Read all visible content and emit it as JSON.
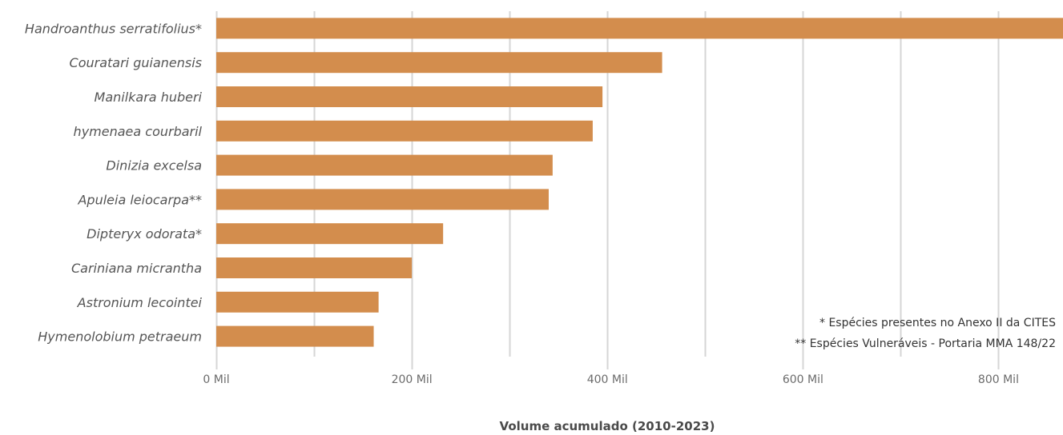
{
  "colors": {
    "bar": "#D38D4D",
    "grid": "#D6D6D6"
  },
  "chart_data": {
    "type": "bar",
    "orientation": "horizontal",
    "categories": [
      "Handroanthus serratifolius*",
      "Couratari guianensis",
      "Manilkara huberi",
      "hymenaea courbaril",
      "Dinizia excelsa",
      "Apuleia leiocarpa**",
      "Dipteryx odorata*",
      "Cariniana micrantha",
      "Astronium lecointei",
      "Hymenolobium petraeum"
    ],
    "values": [
      866000,
      456000,
      395000,
      385000,
      344000,
      340000,
      232000,
      200000,
      166000,
      161000
    ],
    "xlim": [
      0,
      866000
    ],
    "xticks": [
      0,
      200000,
      400000,
      600000,
      800000
    ],
    "xtick_labels": [
      "0 Mil",
      "200 Mil",
      "400 Mil",
      "600 Mil",
      "800 Mil"
    ],
    "xlabel": "Volume acumulado (2010-2023)",
    "ylabel": "",
    "grid": "vertical",
    "annotations": [
      "* Espécies presentes no Anexo II da CITES",
      "** Espécies Vulneráveis - Portaria MMA 148/22"
    ]
  }
}
